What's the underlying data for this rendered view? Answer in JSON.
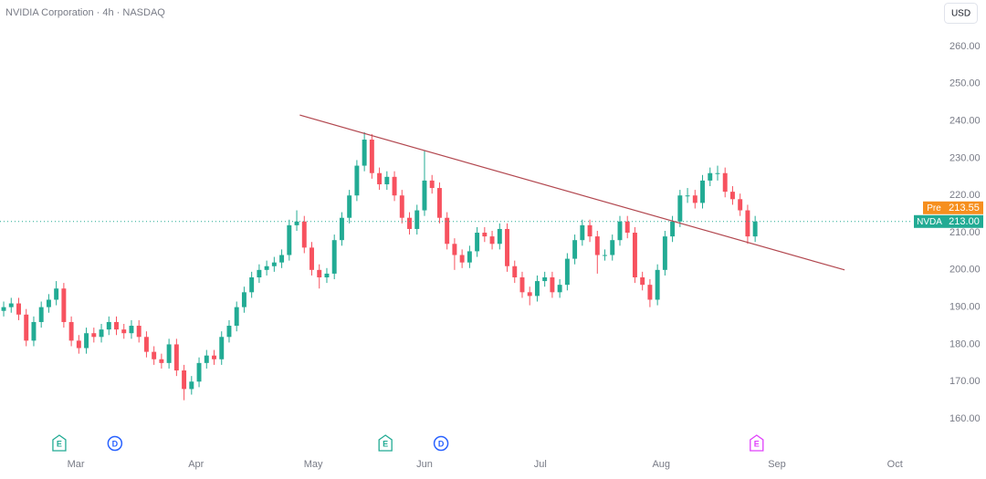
{
  "chart_data": {
    "type": "candlestick",
    "title": "NVIDIA Corporation · 4h · NASDAQ",
    "currency": "USD",
    "up_color": "#22ab94",
    "down_color": "#f7525f",
    "open": [
      189,
      190,
      191,
      188,
      181,
      186,
      190,
      192,
      195,
      186,
      181,
      179,
      183,
      182,
      184,
      186,
      184,
      183,
      185,
      182,
      178,
      176,
      175,
      180,
      173,
      168,
      170,
      175,
      177,
      176,
      182,
      185,
      190,
      194,
      198,
      200,
      201,
      202,
      204,
      212,
      213,
      206,
      200,
      198,
      199,
      208,
      214,
      220,
      228,
      235,
      226,
      223,
      225,
      220,
      214,
      211,
      216,
      224,
      222,
      214,
      207,
      204,
      202,
      205,
      210,
      209,
      207,
      211,
      201,
      198,
      194,
      193,
      197,
      198,
      194,
      196,
      203,
      208,
      212,
      209,
      204,
      204,
      208,
      213,
      210,
      198,
      196,
      192,
      200,
      209,
      213,
      220,
      220,
      218,
      224,
      226,
      226,
      221,
      219,
      216,
      209
    ],
    "high": [
      191.5,
      192.5,
      192.5,
      189.5,
      187.5,
      191.5,
      193.5,
      197,
      196.5,
      187.5,
      182.5,
      184.5,
      184.5,
      185.5,
      187.5,
      187.5,
      185.5,
      186.5,
      186.5,
      183.5,
      179.5,
      177.5,
      181.5,
      181.5,
      174.5,
      171.5,
      176.5,
      178.5,
      178.5,
      183.5,
      186.5,
      191.5,
      195.5,
      199.5,
      201.5,
      202.5,
      203.5,
      205.5,
      213.5,
      216,
      214.5,
      207.5,
      201.5,
      200.5,
      209.5,
      215.5,
      221.5,
      229.5,
      237,
      236.5,
      227.5,
      226.5,
      226.5,
      221.5,
      215.5,
      217.5,
      232,
      225.5,
      223.5,
      215.5,
      208.5,
      205.5,
      206.5,
      211.5,
      211.5,
      210.5,
      212.5,
      212.5,
      202.5,
      199.5,
      195.5,
      198.5,
      199.5,
      199.5,
      197.5,
      204.5,
      209.5,
      213.5,
      213.5,
      210.5,
      205.5,
      209.5,
      214.5,
      214.5,
      211.5,
      199.5,
      197.5,
      201.5,
      210.5,
      214.5,
      221.5,
      222,
      221.5,
      225.5,
      227.5,
      228,
      227.5,
      222.5,
      220.5,
      217.5,
      214.5
    ],
    "low": [
      187.5,
      188.5,
      186.5,
      179.5,
      179.5,
      184.5,
      188.5,
      190.5,
      184.5,
      179.5,
      177.5,
      177.5,
      180.5,
      180.5,
      182.5,
      182.5,
      181.5,
      181.5,
      180.5,
      176.5,
      174.5,
      173.5,
      173.5,
      171.5,
      165,
      166.5,
      168.5,
      173.5,
      174.5,
      174.5,
      180.5,
      183.5,
      188.5,
      192.5,
      196.5,
      198.5,
      199.5,
      200.5,
      202.5,
      210.5,
      204.5,
      198.5,
      195,
      196.5,
      197.5,
      206.5,
      212.5,
      218.5,
      226.5,
      224.5,
      221.5,
      221.5,
      218.5,
      212.5,
      209.5,
      209.5,
      214.5,
      220.5,
      212.5,
      205.5,
      200,
      200.5,
      200.5,
      203.5,
      207.5,
      205.5,
      205.5,
      199.5,
      196.5,
      192.5,
      190.5,
      191.5,
      195.5,
      192.5,
      192.5,
      194.5,
      201.5,
      206.5,
      207.5,
      199,
      202.5,
      202.5,
      206.5,
      208.5,
      196.5,
      194.5,
      190,
      190.5,
      198.5,
      207.5,
      211.5,
      218,
      216.5,
      216.5,
      222.5,
      224,
      219.5,
      217.5,
      214.5,
      207,
      207.5
    ],
    "close": [
      190,
      191,
      188,
      181,
      186,
      190,
      192,
      195,
      186,
      181,
      179,
      183,
      182,
      184,
      186,
      184,
      183,
      185,
      182,
      178,
      176,
      175,
      180,
      173,
      168,
      170,
      175,
      177,
      176,
      182,
      185,
      190,
      194,
      198,
      200,
      201,
      202,
      204,
      212,
      213,
      206,
      200,
      198,
      199,
      208,
      214,
      220,
      228,
      235,
      226,
      223,
      225,
      220,
      214,
      211,
      216,
      224,
      222,
      214,
      207,
      204,
      202,
      205,
      210,
      209,
      207,
      211,
      201,
      198,
      194,
      193,
      197,
      198,
      194,
      196,
      203,
      208,
      212,
      209,
      204,
      204,
      208,
      213,
      210,
      198,
      196,
      192,
      200,
      209,
      213,
      220,
      220,
      218,
      224,
      226,
      226,
      221,
      219,
      216,
      209,
      213
    ],
    "xlim": [
      -0.49,
      121.0
    ],
    "xticks": [
      {
        "value": 9.6,
        "label": "Mar"
      },
      {
        "value": 25.6,
        "label": "Apr"
      },
      {
        "value": 41.2,
        "label": "May"
      },
      {
        "value": 56.0,
        "label": "Jun"
      },
      {
        "value": 71.4,
        "label": "Jul"
      },
      {
        "value": 87.5,
        "label": "Aug"
      },
      {
        "value": 102.9,
        "label": "Sep"
      },
      {
        "value": 118.6,
        "label": "Oct"
      }
    ],
    "ylim": [
      150.7,
      272.5
    ],
    "yticks": [
      {
        "value": 160,
        "label": "160.00"
      },
      {
        "value": 170,
        "label": "170.00"
      },
      {
        "value": 180,
        "label": "180.00"
      },
      {
        "value": 190,
        "label": "190.00"
      },
      {
        "value": 200,
        "label": "200.00"
      },
      {
        "value": 210,
        "label": "210.00"
      },
      {
        "value": 220,
        "label": "220.00"
      },
      {
        "value": 230,
        "label": "230.00"
      },
      {
        "value": 240,
        "label": "240.00"
      },
      {
        "value": 250,
        "label": "250.00"
      },
      {
        "value": 260,
        "label": "260.00"
      }
    ],
    "trendline": {
      "color": "#b2474f",
      "x": [
        39.4,
        111.9
      ],
      "y": [
        241.6,
        200.0
      ]
    },
    "price_labels": [
      {
        "name": "Pre",
        "value": 213.55,
        "value_label": "213.55",
        "color": "#f68f1e"
      },
      {
        "name": "NVDA",
        "value": 213.0,
        "value_label": "213.00",
        "color": "#22ab94"
      }
    ],
    "events": [
      {
        "label": "E",
        "x": 7.4,
        "color": "#22ab94"
      },
      {
        "label": "D",
        "x": 14.8,
        "color": "#2962ff"
      },
      {
        "label": "E",
        "x": 50.8,
        "color": "#22ab94"
      },
      {
        "label": "D",
        "x": 58.2,
        "color": "#2962ff"
      },
      {
        "label": "E",
        "x": 100.2,
        "color": "#e040fb"
      }
    ]
  }
}
